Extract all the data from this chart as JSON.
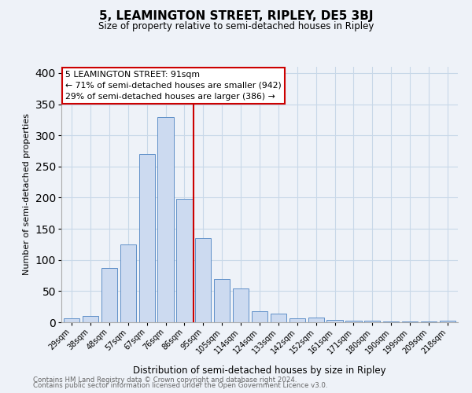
{
  "title": "5, LEAMINGTON STREET, RIPLEY, DE5 3BJ",
  "subtitle": "Size of property relative to semi-detached houses in Ripley",
  "xlabel": "Distribution of semi-detached houses by size in Ripley",
  "ylabel": "Number of semi-detached properties",
  "footnote1": "Contains HM Land Registry data © Crown copyright and database right 2024.",
  "footnote2": "Contains public sector information licensed under the Open Government Licence v3.0.",
  "bar_labels": [
    "29sqm",
    "38sqm",
    "48sqm",
    "57sqm",
    "67sqm",
    "76sqm",
    "86sqm",
    "95sqm",
    "105sqm",
    "114sqm",
    "124sqm",
    "133sqm",
    "142sqm",
    "152sqm",
    "161sqm",
    "171sqm",
    "180sqm",
    "190sqm",
    "199sqm",
    "209sqm",
    "218sqm"
  ],
  "bar_values": [
    6,
    10,
    87,
    125,
    270,
    329,
    198,
    135,
    69,
    54,
    18,
    14,
    6,
    8,
    4,
    2,
    2,
    1,
    1,
    1,
    3
  ],
  "bar_color": "#ccdaf0",
  "bar_edge_color": "#6090c8",
  "grid_color": "#c8d8e8",
  "vline_x": 6.5,
  "vline_color": "#cc0000",
  "annotation_text": "5 LEAMINGTON STREET: 91sqm\n← 71% of semi-detached houses are smaller (942)\n29% of semi-detached houses are larger (386) →",
  "annotation_box_color": "#ffffff",
  "annotation_box_edge_color": "#cc0000",
  "ylim": [
    0,
    410
  ],
  "background_color": "#eef2f8"
}
